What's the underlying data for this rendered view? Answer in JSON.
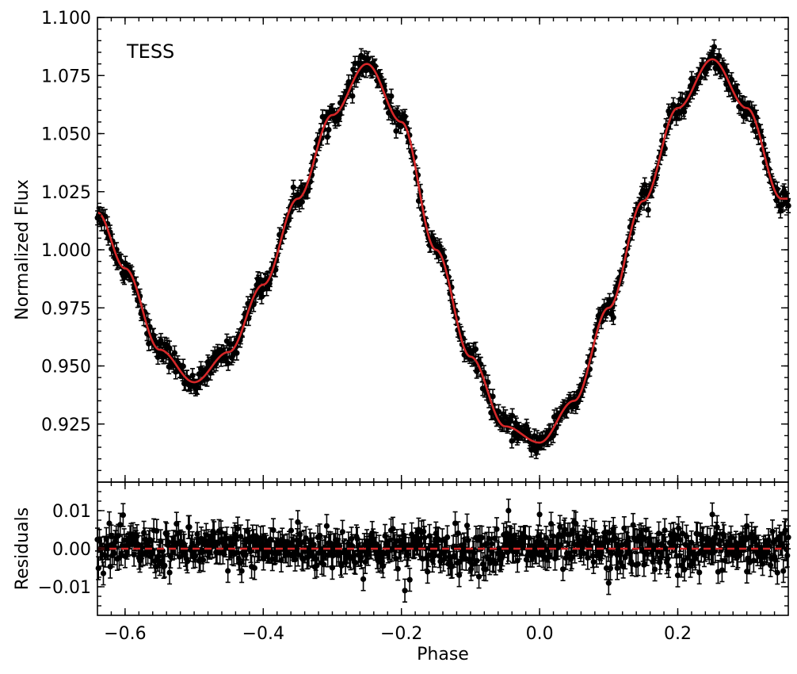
{
  "chart_data": [
    {
      "type": "scatter",
      "panel": "top",
      "annotation": "TESS",
      "xlabel": "",
      "ylabel": "Normalized Flux",
      "xlim": [
        -0.64,
        0.36
      ],
      "ylim": [
        0.9,
        1.1
      ],
      "yticks": [
        0.925,
        0.95,
        0.975,
        1.0,
        1.025,
        1.05,
        1.075,
        1.1
      ],
      "ytick_labels": [
        "0.925",
        "0.950",
        "0.975",
        "1.000",
        "1.025",
        "1.050",
        "1.075",
        "1.100"
      ],
      "xticks": [
        -0.6,
        -0.4,
        -0.2,
        0.0,
        0.2
      ],
      "series": [
        {
          "kind": "data_with_errorbars",
          "color": "#000000",
          "x": [
            -0.64,
            -0.6,
            -0.55,
            -0.5,
            -0.45,
            -0.4,
            -0.35,
            -0.3,
            -0.25,
            -0.2,
            -0.15,
            -0.1,
            -0.05,
            0.0,
            0.05,
            0.1,
            0.15,
            0.2,
            0.25,
            0.3,
            0.35
          ],
          "y": [
            1.016,
            0.992,
            0.957,
            0.943,
            0.956,
            0.985,
            1.022,
            1.058,
            1.08,
            1.055,
            1.0,
            0.954,
            0.924,
            0.917,
            0.935,
            0.975,
            1.021,
            1.061,
            1.082,
            1.061,
            1.022
          ],
          "yerr": 0.003
        },
        {
          "kind": "model",
          "color": "#d62728",
          "x": [
            -0.64,
            -0.6,
            -0.55,
            -0.5,
            -0.45,
            -0.4,
            -0.35,
            -0.3,
            -0.25,
            -0.2,
            -0.15,
            -0.1,
            -0.05,
            0.0,
            0.05,
            0.1,
            0.15,
            0.2,
            0.25,
            0.3,
            0.35
          ],
          "y": [
            1.016,
            0.992,
            0.957,
            0.943,
            0.956,
            0.985,
            1.022,
            1.058,
            1.08,
            1.055,
            1.0,
            0.954,
            0.924,
            0.917,
            0.935,
            0.975,
            1.021,
            1.061,
            1.082,
            1.061,
            1.022
          ]
        }
      ]
    },
    {
      "type": "scatter",
      "panel": "bottom",
      "xlabel": "Phase",
      "ylabel": "Residuals",
      "xlim": [
        -0.64,
        0.36
      ],
      "ylim": [
        -0.0175,
        0.0175
      ],
      "yticks": [
        -0.01,
        0.0,
        0.01
      ],
      "ytick_labels": [
        "−0.01",
        "0.00",
        "0.01"
      ],
      "xticks": [
        -0.6,
        -0.4,
        -0.2,
        0.0,
        0.2
      ],
      "xtick_labels": [
        "−0.6",
        "−0.4",
        "−0.2",
        "0.0",
        "0.2"
      ],
      "series": [
        {
          "kind": "residuals_with_errorbars",
          "color": "#000000",
          "x": [
            -0.62,
            -0.55,
            -0.48,
            -0.4,
            -0.35,
            -0.3,
            -0.25,
            -0.195,
            -0.15,
            -0.1,
            -0.045,
            0.0,
            0.05,
            0.1,
            0.15,
            0.2,
            0.25,
            0.3
          ],
          "y": [
            0.001,
            -0.004,
            0.002,
            0.003,
            0.007,
            -0.005,
            0.002,
            -0.011,
            0.004,
            -0.003,
            0.01,
            0.009,
            0.007,
            -0.009,
            0.003,
            -0.007,
            0.009,
            -0.006
          ],
          "yerr": 0.003
        },
        {
          "kind": "zero_line",
          "color": "#d62728",
          "style": "dashed",
          "y": 0.0
        }
      ]
    }
  ]
}
